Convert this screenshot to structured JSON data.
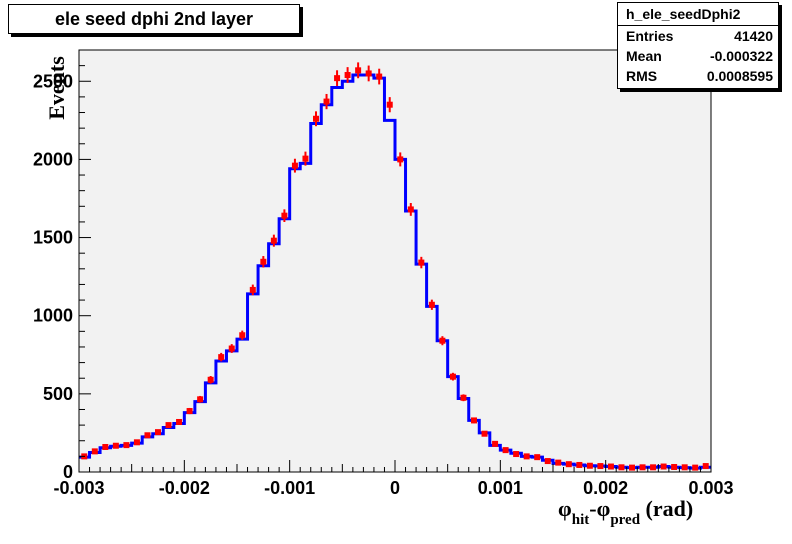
{
  "title": "ele seed dphi 2nd layer",
  "stats": {
    "name": "h_ele_seedDphi2",
    "rows": [
      {
        "label": "Entries",
        "value": "41420"
      },
      {
        "label": "Mean",
        "value": "-0.000322"
      },
      {
        "label": "RMS",
        "value": "0.0008595"
      }
    ]
  },
  "chart_data": {
    "type": "histogram",
    "title": "ele seed dphi 2nd layer",
    "xlabel": {
      "phi1": "φ",
      "sub1": "hit",
      "minus": "-",
      "phi2": "φ",
      "sub2": "pred",
      "unit": " (rad)"
    },
    "ylabel": "Events",
    "xlim": [
      -0.003,
      0.003
    ],
    "ylim": [
      0,
      2700
    ],
    "x_ticks": [
      {
        "value": -0.003,
        "label": "-0.003"
      },
      {
        "value": -0.002,
        "label": "-0.002"
      },
      {
        "value": -0.001,
        "label": "-0.001"
      },
      {
        "value": 0,
        "label": "0"
      },
      {
        "value": 0.001,
        "label": "0.001"
      },
      {
        "value": 0.002,
        "label": "0.002"
      },
      {
        "value": 0.003,
        "label": "0.003"
      }
    ],
    "y_ticks": [
      {
        "value": 0,
        "label": "0"
      },
      {
        "value": 500,
        "label": "500"
      },
      {
        "value": 1000,
        "label": "1000"
      },
      {
        "value": 1500,
        "label": "1500"
      },
      {
        "value": 2000,
        "label": "2000"
      },
      {
        "value": 2500,
        "label": "2500"
      }
    ],
    "grid": false,
    "bin_edges": [
      -0.003,
      -0.0029,
      -0.0028,
      -0.0027,
      -0.0026,
      -0.0025,
      -0.0024,
      -0.0023,
      -0.0022,
      -0.0021,
      -0.002,
      -0.0019,
      -0.0018,
      -0.0017,
      -0.0016,
      -0.0015,
      -0.0014,
      -0.0013,
      -0.0012,
      -0.0011,
      -0.001,
      -0.0009,
      -0.0008,
      -0.0007,
      -0.0006,
      -0.0005,
      -0.0004,
      -0.0003,
      -0.0002,
      -0.0001,
      0.0,
      0.0001,
      0.0002,
      0.0003,
      0.0004,
      0.0005,
      0.0006,
      0.0007,
      0.0008,
      0.0009,
      0.001,
      0.0011,
      0.0012,
      0.0013,
      0.0014,
      0.0015,
      0.0016,
      0.0017,
      0.0018,
      0.0019,
      0.002,
      0.0021,
      0.0022,
      0.0023,
      0.0024,
      0.0025,
      0.0026,
      0.0027,
      0.0028,
      0.0029,
      0.003
    ],
    "series": [
      {
        "style": "step",
        "color": "#0000ff",
        "values": [
          95,
          125,
          155,
          165,
          170,
          185,
          225,
          245,
          285,
          310,
          380,
          450,
          570,
          710,
          775,
          850,
          1140,
          1320,
          1460,
          1620,
          1940,
          1975,
          2230,
          2350,
          2460,
          2500,
          2540,
          2540,
          2520,
          2250,
          2000,
          1670,
          1330,
          1060,
          840,
          610,
          470,
          330,
          250,
          170,
          140,
          120,
          100,
          95,
          75,
          55,
          50,
          45,
          40,
          38,
          35,
          30,
          28,
          30,
          30,
          35,
          30,
          28,
          25,
          30
        ]
      },
      {
        "style": "points",
        "color": "#ff0000",
        "values": [
          100,
          132,
          160,
          168,
          172,
          190,
          235,
          255,
          300,
          320,
          390,
          465,
          590,
          735,
          790,
          875,
          1165,
          1345,
          1480,
          1640,
          1960,
          2005,
          2260,
          2370,
          2520,
          2540,
          2570,
          2550,
          2530,
          2350,
          2000,
          1680,
          1340,
          1070,
          840,
          610,
          475,
          330,
          245,
          180,
          140,
          115,
          100,
          95,
          70,
          60,
          50,
          45,
          40,
          38,
          35,
          30,
          28,
          30,
          30,
          35,
          32,
          30,
          28,
          38
        ]
      }
    ]
  }
}
